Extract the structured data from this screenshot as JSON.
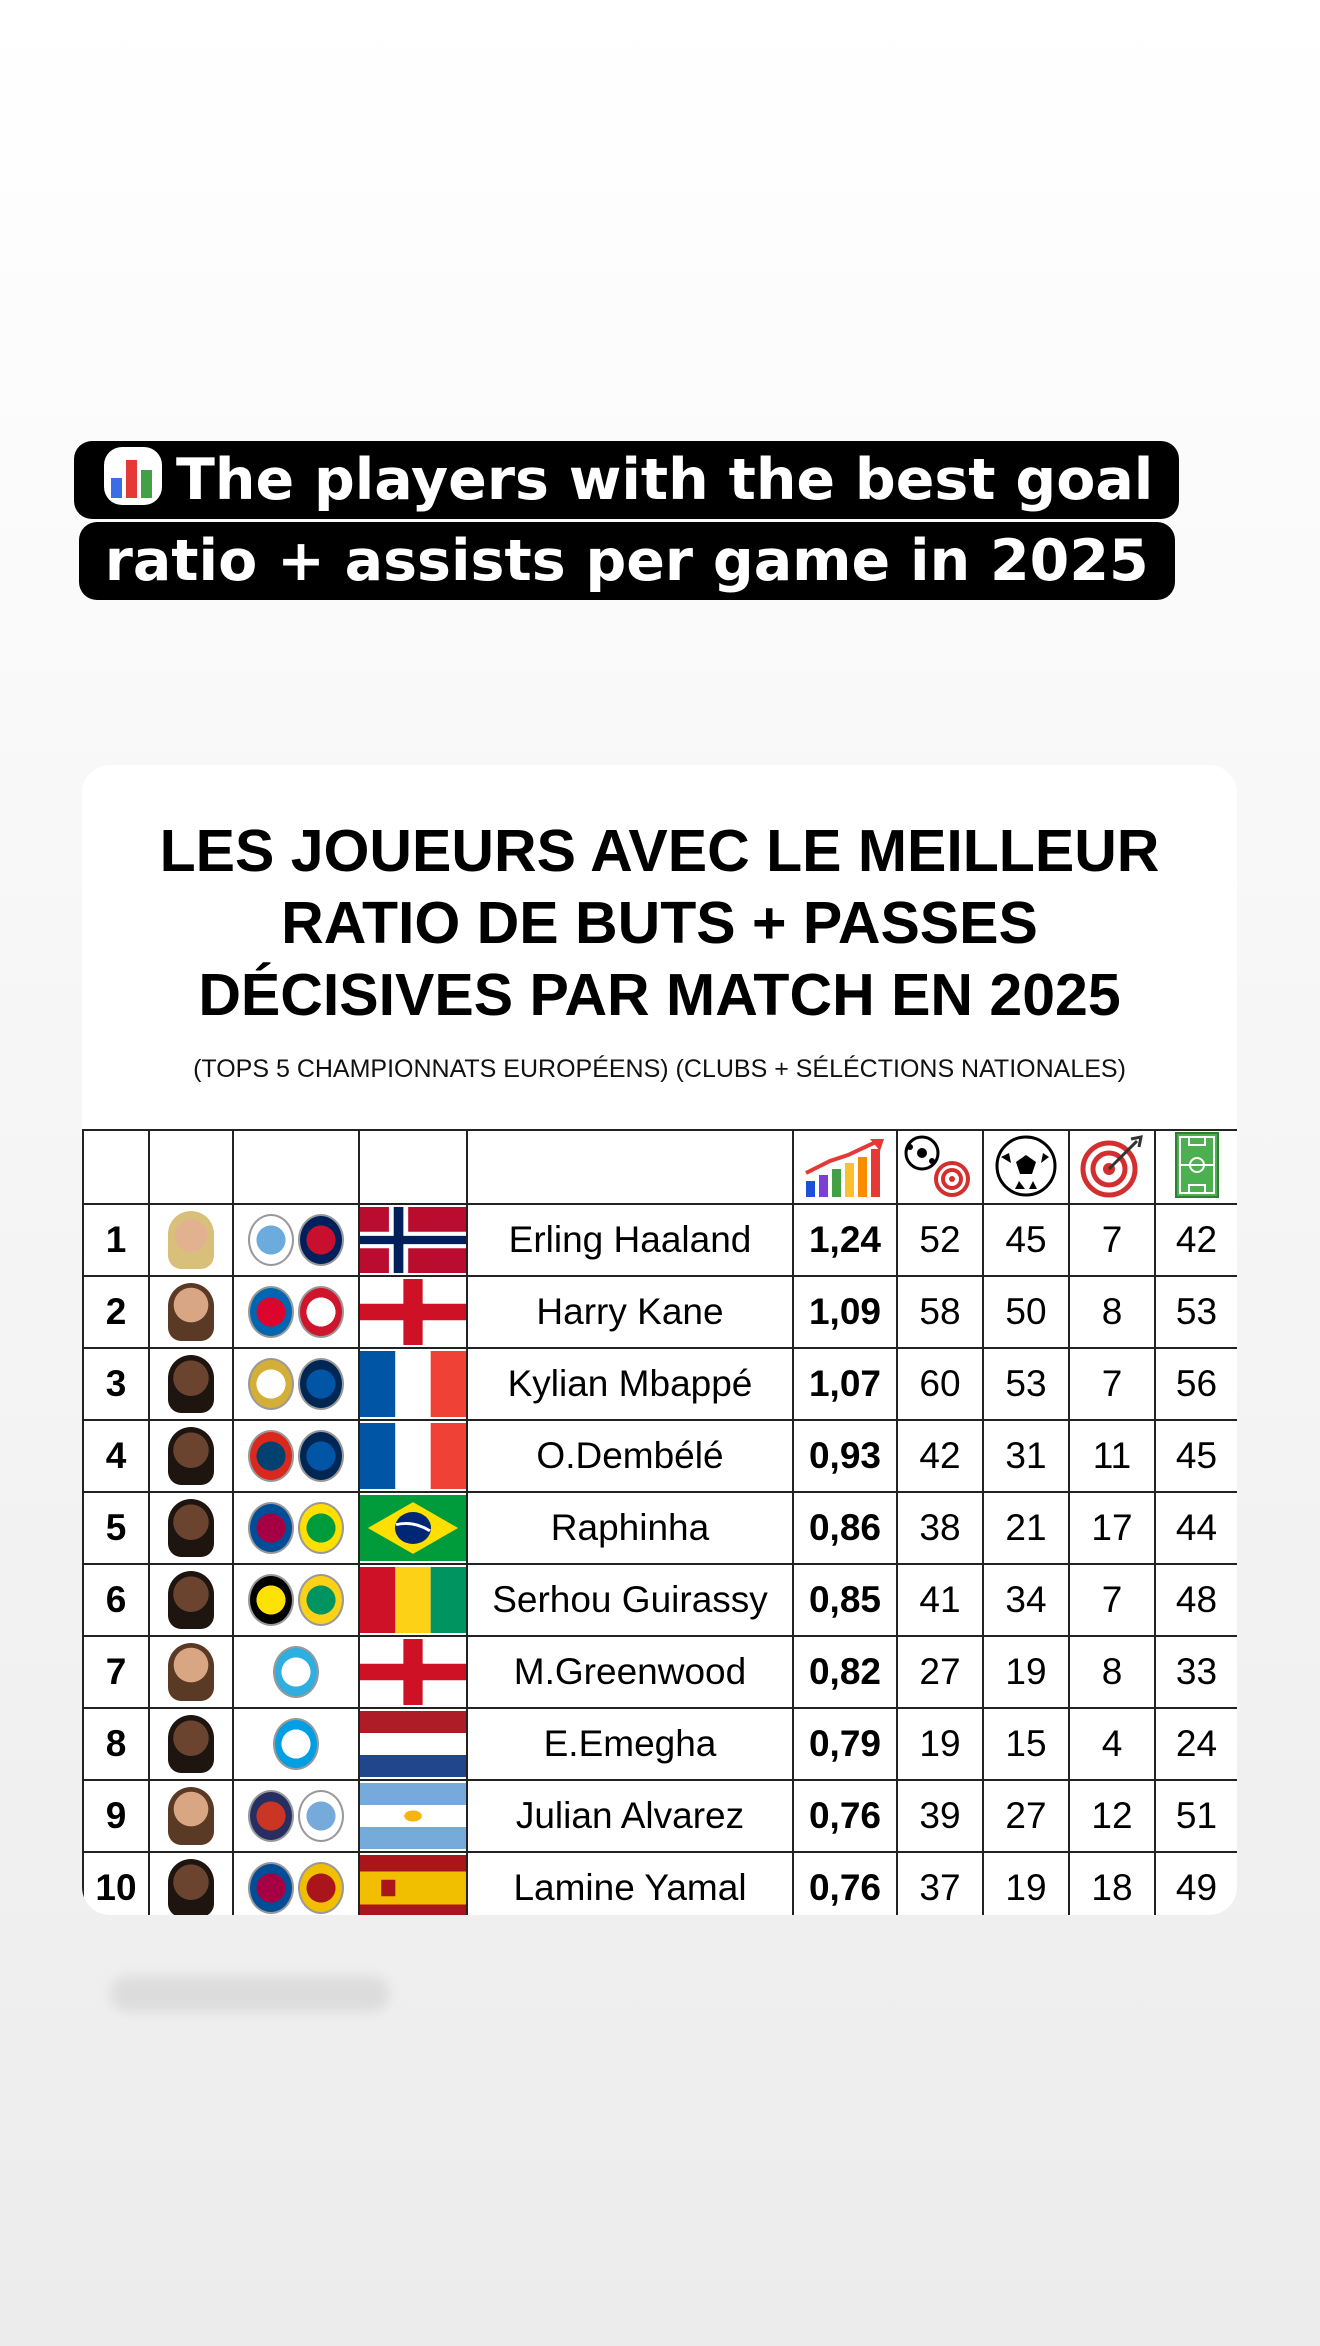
{
  "caption": {
    "emoji": "bar-chart",
    "line1": "The players with the best goal",
    "line2": "ratio + assists per game in 2025"
  },
  "card": {
    "title_line1": "LES JOUEURS AVEC LE MEILLEUR",
    "title_line2": "RATIO DE BUTS + PASSES",
    "title_line3": "DÉCISIVES PAR MATCH EN 2025",
    "subtitle": "(TOPS 5 CHAMPIONNATS EUROPÉENS) (CLUBS + SÉLÉCTIONS NATIONALES)"
  },
  "columns": [
    "rank",
    "photo",
    "club-badges",
    "national-flag",
    "name",
    "ratio-icon",
    "goals-assists-icon",
    "goals-icon",
    "assists-icon",
    "matches-icon"
  ],
  "rows": [
    {
      "rank": "1",
      "name": "Erling Haaland",
      "ratio": "1,24",
      "ga": "52",
      "goals": "45",
      "assists": "7",
      "matches": "42"
    },
    {
      "rank": "2",
      "name": "Harry Kane",
      "ratio": "1,09",
      "ga": "58",
      "goals": "50",
      "assists": "8",
      "matches": "53"
    },
    {
      "rank": "3",
      "name": "Kylian Mbappé",
      "ratio": "1,07",
      "ga": "60",
      "goals": "53",
      "assists": "7",
      "matches": "56"
    },
    {
      "rank": "4",
      "name": "O.Dembélé",
      "ratio": "0,93",
      "ga": "42",
      "goals": "31",
      "assists": "11",
      "matches": "45"
    },
    {
      "rank": "5",
      "name": "Raphinha",
      "ratio": "0,86",
      "ga": "38",
      "goals": "21",
      "assists": "17",
      "matches": "44"
    },
    {
      "rank": "6",
      "name": "Serhou Guirassy",
      "ratio": "0,85",
      "ga": "41",
      "goals": "34",
      "assists": "7",
      "matches": "48"
    },
    {
      "rank": "7",
      "name": "M.Greenwood",
      "ratio": "0,82",
      "ga": "27",
      "goals": "19",
      "assists": "8",
      "matches": "33"
    },
    {
      "rank": "8",
      "name": "E.Emegha",
      "ratio": "0,79",
      "ga": "19",
      "goals": "15",
      "assists": "4",
      "matches": "24"
    },
    {
      "rank": "9",
      "name": "Julian Alvarez",
      "ratio": "0,76",
      "ga": "39",
      "goals": "27",
      "assists": "12",
      "matches": "51"
    },
    {
      "rank": "10",
      "name": "Lamine Yamal",
      "ratio": "0,76",
      "ga": "37",
      "goals": "19",
      "assists": "18",
      "matches": "49"
    }
  ],
  "colors": {
    "caption_bg": "#000000",
    "card_bg": "#ffffff",
    "grid": "#222222"
  }
}
